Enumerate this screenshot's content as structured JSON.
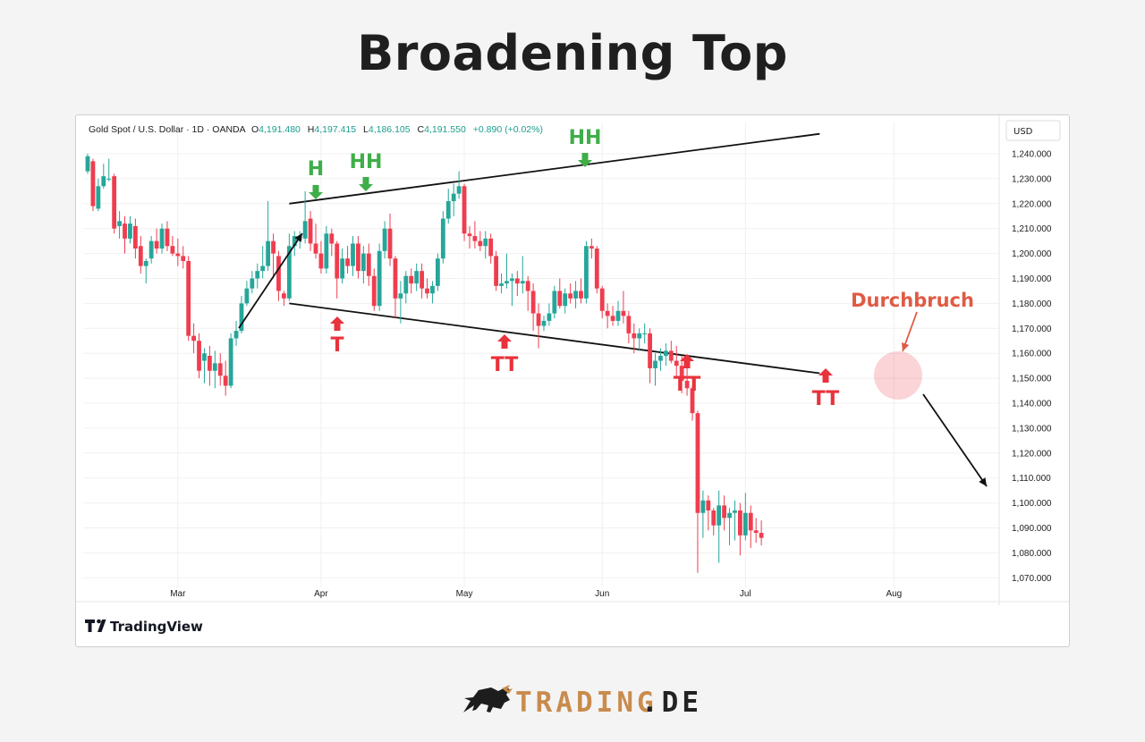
{
  "page": {
    "title": "Broadening Top"
  },
  "header": {
    "symbol": "Gold Spot / U.S. Dollar · 1D · OANDA",
    "o_label": "O",
    "o_value": "4,191.480",
    "h_label": "H",
    "h_value": "4,197.415",
    "l_label": "L",
    "l_value": "4,186.105",
    "c_label": "C",
    "c_value": "4,191.550",
    "change": "+0.890 (+0.02%)",
    "currency": "USD"
  },
  "branding": {
    "tradingview": "TradingView",
    "footer_brand": "TRADING",
    "footer_tld": ".DE"
  },
  "annotations": {
    "h": "H",
    "hh1": "HH",
    "hh2": "HH",
    "t": "T",
    "tt1": "TT",
    "tt2": "TT",
    "tt3": "TT",
    "breakout": "Durchbruch"
  },
  "colors": {
    "up": "#26a69a",
    "down": "#ef3d4f",
    "green_label": "#3fae49",
    "red_label": "#e8323c",
    "breakout": "#e05a44"
  },
  "chart_data": {
    "type": "candlestick",
    "title": "Broadening Top",
    "ylabel": "USD",
    "ylim": [
      1065,
      1245
    ],
    "y_ticks": [
      "1,240.000",
      "1,230.000",
      "1,220.000",
      "1,210.000",
      "1,200.000",
      "1,190.000",
      "1,180.000",
      "1,170.000",
      "1,160.000",
      "1,150.000",
      "1,140.000",
      "1,130.000",
      "1,120.000",
      "1,110.000",
      "1,100.000",
      "1,090.000",
      "1,080.000",
      "1,070.000"
    ],
    "x_ticks": [
      {
        "label": "Mar",
        "index": 17
      },
      {
        "label": "Apr",
        "index": 44
      },
      {
        "label": "May",
        "index": 71
      },
      {
        "label": "Jun",
        "index": 97
      },
      {
        "label": "Jul",
        "index": 124
      },
      {
        "label": "Aug",
        "index": 152
      }
    ],
    "candles": [
      [
        1233,
        1240,
        1232,
        1239
      ],
      [
        1237,
        1238,
        1217,
        1219
      ],
      [
        1218,
        1230,
        1217,
        1227
      ],
      [
        1227,
        1236,
        1226,
        1231
      ],
      [
        1230,
        1238,
        1229,
        1230
      ],
      [
        1231,
        1232,
        1208,
        1210
      ],
      [
        1211,
        1217,
        1206,
        1213
      ],
      [
        1212,
        1215,
        1200,
        1206
      ],
      [
        1206,
        1215,
        1204,
        1212
      ],
      [
        1211,
        1214,
        1198,
        1202
      ],
      [
        1203,
        1207,
        1192,
        1195
      ],
      [
        1195,
        1198,
        1188,
        1197
      ],
      [
        1198,
        1207,
        1196,
        1205
      ],
      [
        1205,
        1210,
        1200,
        1202
      ],
      [
        1202,
        1212,
        1200,
        1210
      ],
      [
        1210,
        1213,
        1201,
        1203
      ],
      [
        1203,
        1207,
        1199,
        1200
      ],
      [
        1200,
        1206,
        1195,
        1199
      ],
      [
        1199,
        1203,
        1194,
        1197
      ],
      [
        1197,
        1199,
        1165,
        1167
      ],
      [
        1167,
        1172,
        1160,
        1165
      ],
      [
        1165,
        1168,
        1150,
        1153
      ],
      [
        1157,
        1162,
        1148,
        1160
      ],
      [
        1159,
        1163,
        1147,
        1153
      ],
      [
        1153,
        1161,
        1146,
        1156
      ],
      [
        1156,
        1160,
        1147,
        1151
      ],
      [
        1151,
        1157,
        1143,
        1147
      ],
      [
        1147,
        1168,
        1146,
        1166
      ],
      [
        1166,
        1173,
        1163,
        1169
      ],
      [
        1169,
        1183,
        1168,
        1180
      ],
      [
        1180,
        1189,
        1179,
        1186
      ],
      [
        1186,
        1193,
        1184,
        1190
      ],
      [
        1190,
        1196,
        1186,
        1193
      ],
      [
        1193,
        1203,
        1190,
        1195
      ],
      [
        1195,
        1221,
        1193,
        1205
      ],
      [
        1205,
        1208,
        1190,
        1200
      ],
      [
        1199,
        1201,
        1181,
        1185
      ],
      [
        1184,
        1185,
        1179,
        1182
      ],
      [
        1182,
        1208,
        1181,
        1203
      ],
      [
        1203,
        1209,
        1199,
        1207
      ],
      [
        1206,
        1209,
        1202,
        1206
      ],
      [
        1206,
        1225,
        1204,
        1213
      ],
      [
        1214,
        1217,
        1201,
        1204
      ],
      [
        1204,
        1212,
        1198,
        1200
      ],
      [
        1200,
        1205,
        1192,
        1194
      ],
      [
        1194,
        1211,
        1192,
        1208
      ],
      [
        1208,
        1210,
        1199,
        1204
      ],
      [
        1204,
        1205,
        1182,
        1190
      ],
      [
        1190,
        1202,
        1188,
        1198
      ],
      [
        1198,
        1203,
        1192,
        1195
      ],
      [
        1195,
        1207,
        1191,
        1204
      ],
      [
        1204,
        1207,
        1190,
        1193
      ],
      [
        1193,
        1203,
        1188,
        1200
      ],
      [
        1200,
        1204,
        1187,
        1191
      ],
      [
        1191,
        1194,
        1177,
        1179
      ],
      [
        1179,
        1204,
        1177,
        1201
      ],
      [
        1201,
        1213,
        1198,
        1210
      ],
      [
        1210,
        1216,
        1195,
        1198
      ],
      [
        1198,
        1199,
        1174,
        1182
      ],
      [
        1182,
        1189,
        1172,
        1184
      ],
      [
        1184,
        1193,
        1180,
        1191
      ],
      [
        1191,
        1194,
        1184,
        1188
      ],
      [
        1188,
        1196,
        1185,
        1193
      ],
      [
        1193,
        1196,
        1182,
        1186
      ],
      [
        1186,
        1190,
        1182,
        1184
      ],
      [
        1184,
        1189,
        1180,
        1187
      ],
      [
        1187,
        1200,
        1185,
        1198
      ],
      [
        1198,
        1217,
        1196,
        1214
      ],
      [
        1214,
        1226,
        1212,
        1221
      ],
      [
        1221,
        1228,
        1215,
        1224
      ],
      [
        1224,
        1233,
        1222,
        1227
      ],
      [
        1227,
        1228,
        1205,
        1208
      ],
      [
        1208,
        1211,
        1202,
        1207
      ],
      [
        1207,
        1213,
        1202,
        1205
      ],
      [
        1205,
        1209,
        1201,
        1203
      ],
      [
        1203,
        1209,
        1198,
        1206
      ],
      [
        1206,
        1208,
        1196,
        1199
      ],
      [
        1199,
        1201,
        1185,
        1187
      ],
      [
        1187,
        1192,
        1184,
        1188
      ],
      [
        1188,
        1200,
        1186,
        1189
      ],
      [
        1189,
        1192,
        1179,
        1190
      ],
      [
        1190,
        1193,
        1183,
        1188
      ],
      [
        1188,
        1199,
        1184,
        1189
      ],
      [
        1189,
        1191,
        1177,
        1185
      ],
      [
        1185,
        1188,
        1169,
        1176
      ],
      [
        1176,
        1180,
        1162,
        1171
      ],
      [
        1171,
        1175,
        1169,
        1173
      ],
      [
        1173,
        1180,
        1171,
        1176
      ],
      [
        1176,
        1187,
        1174,
        1185
      ],
      [
        1185,
        1190,
        1178,
        1179
      ],
      [
        1179,
        1186,
        1176,
        1184
      ],
      [
        1184,
        1188,
        1180,
        1182
      ],
      [
        1182,
        1189,
        1178,
        1185
      ],
      [
        1185,
        1190,
        1180,
        1182
      ],
      [
        1182,
        1205,
        1180,
        1203
      ],
      [
        1203,
        1206,
        1198,
        1202
      ],
      [
        1202,
        1203,
        1184,
        1186
      ],
      [
        1186,
        1187,
        1174,
        1177
      ],
      [
        1177,
        1180,
        1170,
        1175
      ],
      [
        1175,
        1179,
        1171,
        1173
      ],
      [
        1173,
        1181,
        1171,
        1177
      ],
      [
        1177,
        1185,
        1172,
        1175
      ],
      [
        1175,
        1177,
        1164,
        1168
      ],
      [
        1168,
        1172,
        1160,
        1166
      ],
      [
        1166,
        1170,
        1161,
        1168
      ],
      [
        1168,
        1172,
        1164,
        1168
      ],
      [
        1168,
        1170,
        1148,
        1154
      ],
      [
        1154,
        1160,
        1147,
        1157
      ],
      [
        1157,
        1162,
        1153,
        1159
      ],
      [
        1159,
        1164,
        1155,
        1161
      ],
      [
        1161,
        1165,
        1156,
        1157
      ],
      [
        1157,
        1163,
        1150,
        1155
      ],
      [
        1155,
        1159,
        1144,
        1149
      ],
      [
        1149,
        1154,
        1143,
        1146
      ],
      [
        1146,
        1147,
        1133,
        1136
      ],
      [
        1136,
        1137,
        1072,
        1096
      ],
      [
        1096,
        1105,
        1086,
        1101
      ],
      [
        1101,
        1103,
        1089,
        1097
      ],
      [
        1097,
        1098,
        1087,
        1091
      ],
      [
        1091,
        1105,
        1076,
        1099
      ],
      [
        1099,
        1103,
        1089,
        1094
      ],
      [
        1094,
        1098,
        1083,
        1096
      ],
      [
        1096,
        1101,
        1085,
        1097
      ],
      [
        1097,
        1100,
        1079,
        1087
      ],
      [
        1087,
        1104,
        1085,
        1096
      ],
      [
        1096,
        1099,
        1082,
        1089
      ],
      [
        1089,
        1094,
        1084,
        1088
      ],
      [
        1088,
        1093,
        1083,
        1086
      ]
    ],
    "trendlines": [
      {
        "name": "upper",
        "from": {
          "index": 38,
          "price": 1220
        },
        "to": {
          "index": 138,
          "price": 1248
        }
      },
      {
        "name": "lower",
        "from": {
          "index": 38,
          "price": 1180
        },
        "to": {
          "index": 138,
          "price": 1152
        }
      }
    ]
  }
}
